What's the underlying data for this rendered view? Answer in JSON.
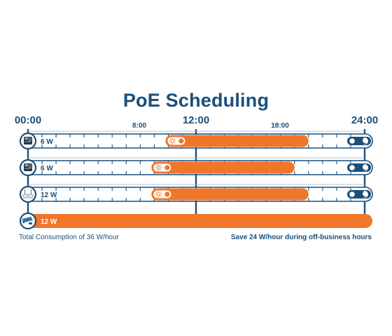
{
  "title": "PoE Scheduling",
  "time_labels": {
    "start": "00:00",
    "noon": "12:00",
    "end": "24:00",
    "morning": "8:00",
    "evening": "18:00"
  },
  "rows": [
    {
      "device": "phone-icon",
      "power": "6 W",
      "on_hour": 10.0,
      "off_hour": 20.0,
      "icons": [
        "sun-icon",
        "moon-icon"
      ]
    },
    {
      "device": "phone-icon",
      "power": "6 W",
      "on_hour": 9.0,
      "off_hour": 19.0,
      "icons": [
        "sun-icon",
        "moon-icon"
      ]
    },
    {
      "device": "access-point-icon",
      "power": "12 W",
      "on_hour": 9.0,
      "off_hour": 20.0,
      "icons": [
        "sun-icon",
        "moon-icon"
      ]
    },
    {
      "device": "camera-icon",
      "power": "12 W",
      "on_hour": 0,
      "off_hour": 24,
      "icons": []
    }
  ],
  "footer": {
    "left": "Total Consumption of 36 W/hour",
    "right": "Save 24 W/hour during off-business hours"
  },
  "colors": {
    "navy": "#1b4f7a",
    "orange": "#f0762a",
    "light_blue": "#8fb9d8",
    "background": "#ffffff"
  }
}
